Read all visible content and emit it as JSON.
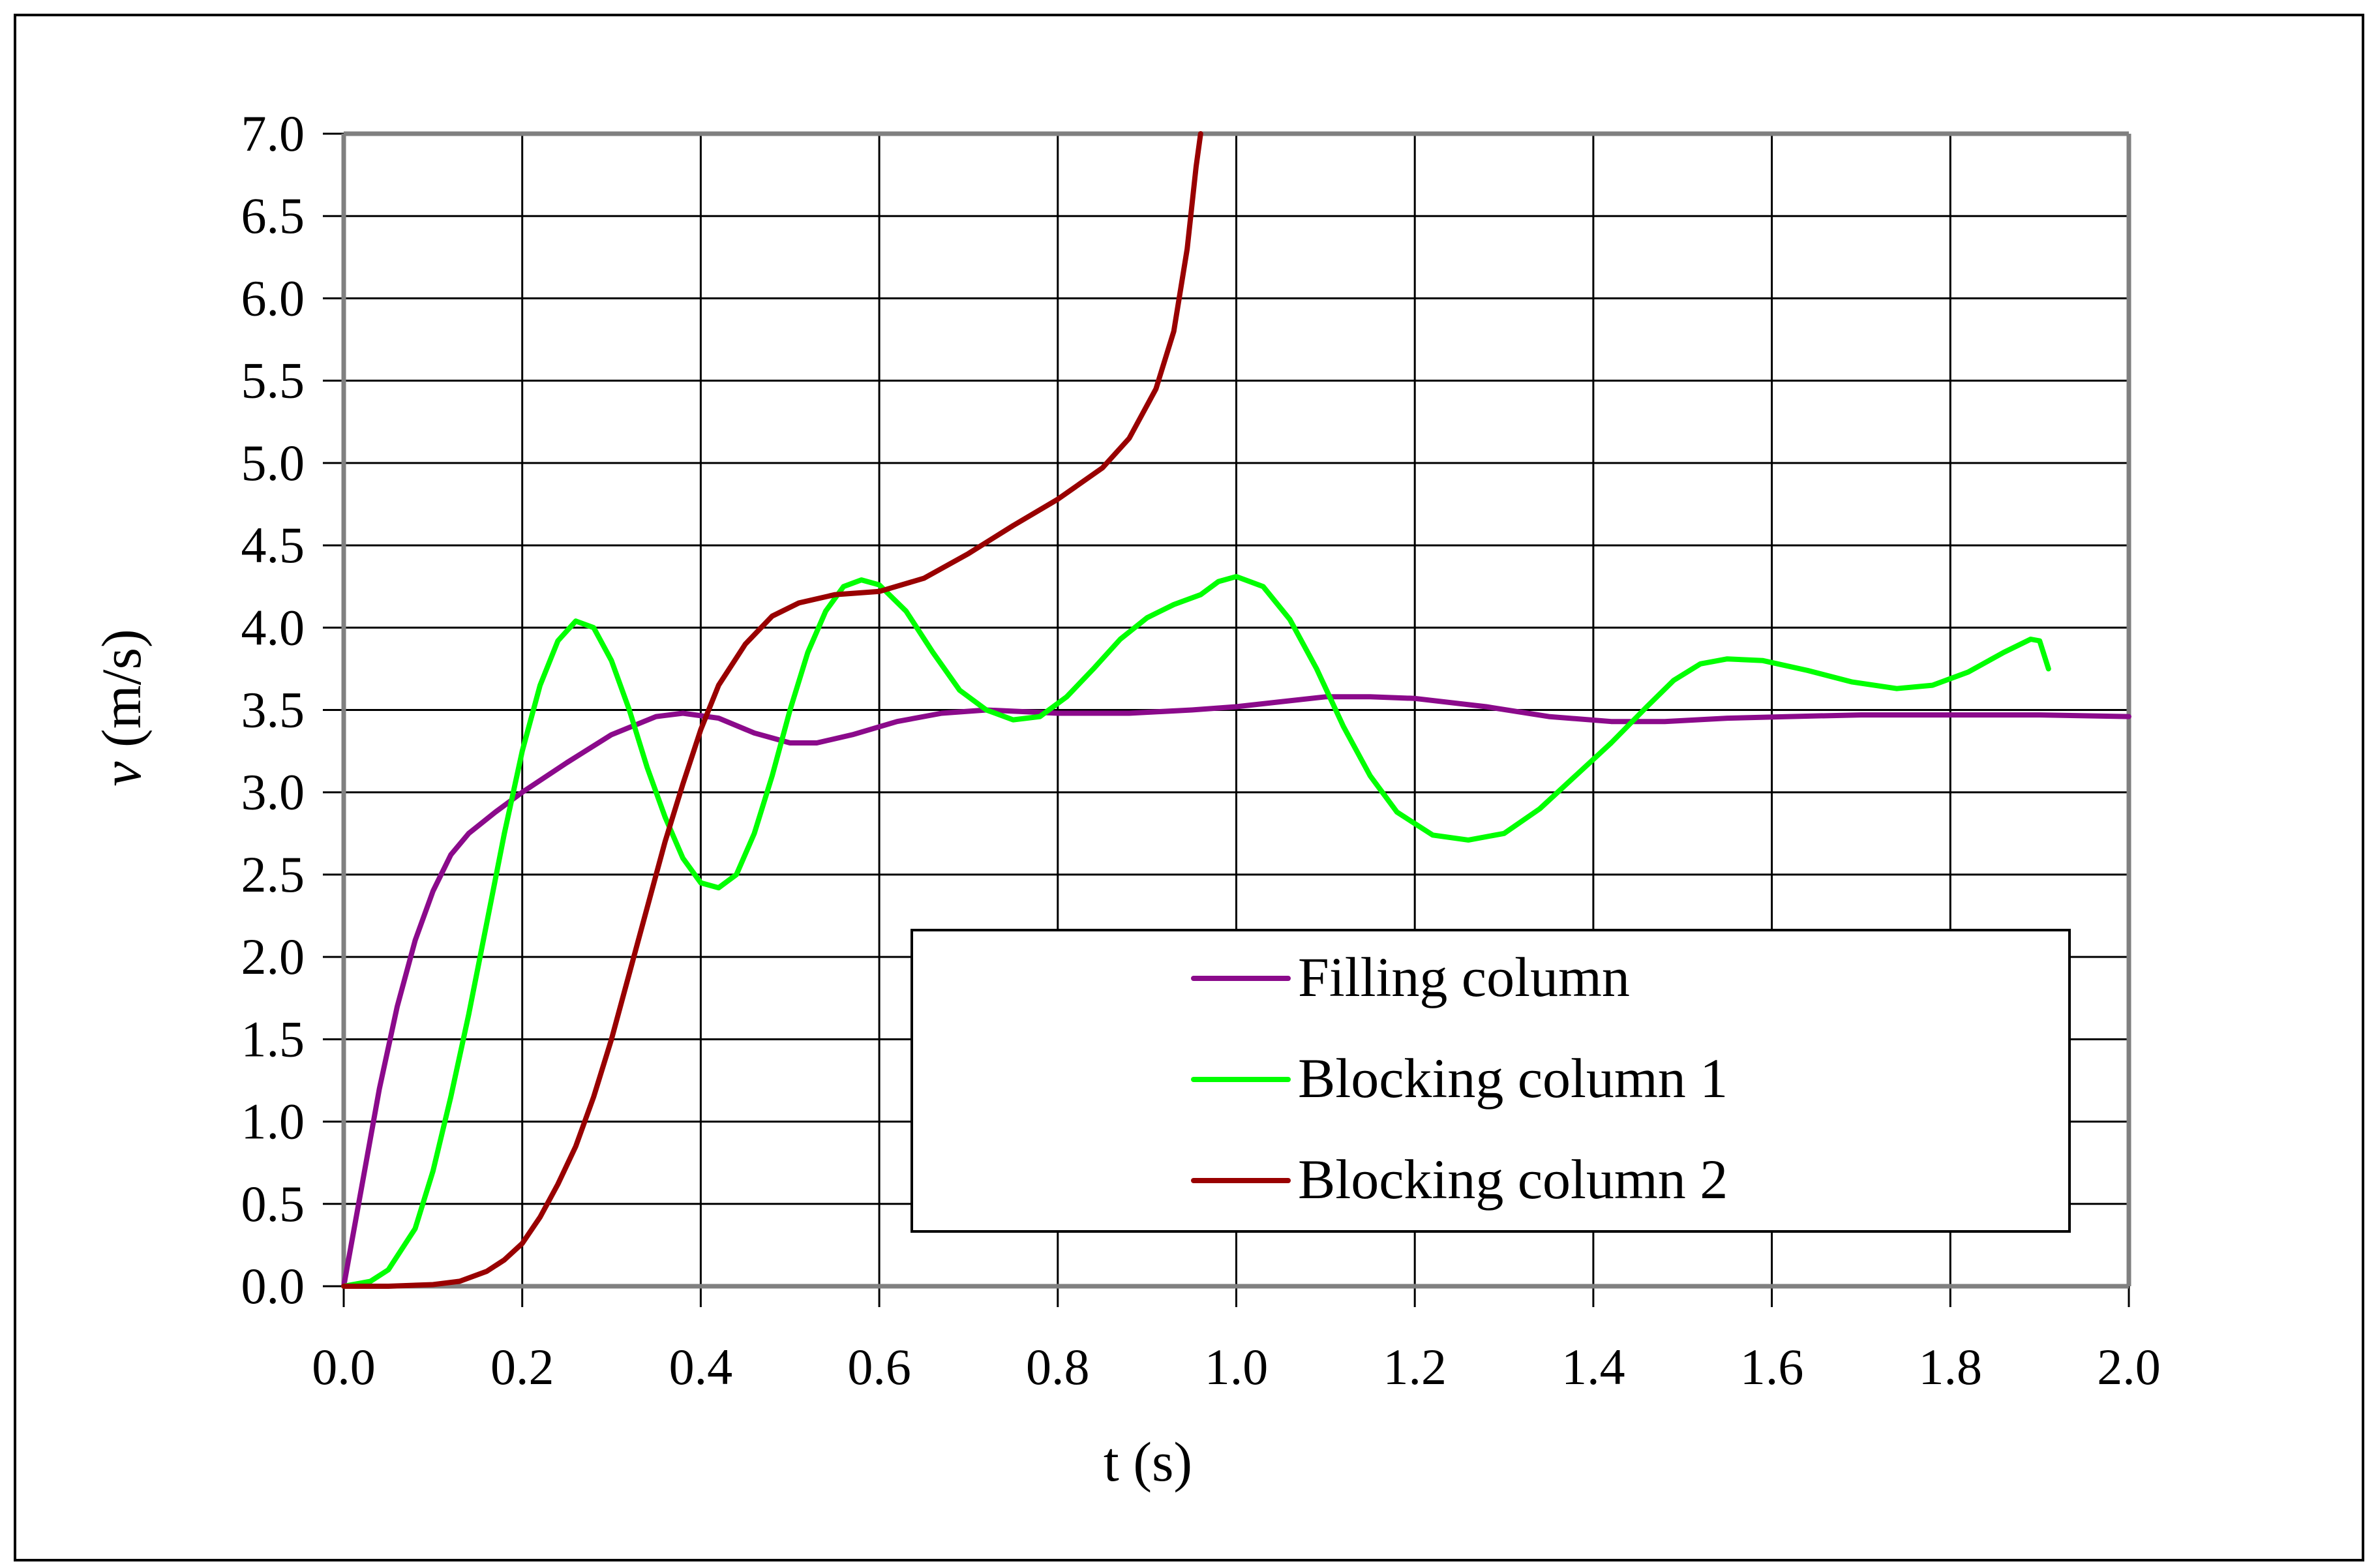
{
  "chart_data": {
    "type": "line",
    "title": "",
    "xlabel": "t (s)",
    "ylabel_italic": "v",
    "ylabel_unit": " (m/s)",
    "ylabel": "v (m/s)",
    "xlim": [
      0.0,
      2.0
    ],
    "ylim": [
      0.0,
      7.0
    ],
    "grid": true,
    "legend_position": "lower right (inside plot)",
    "x_ticks": [
      "0.0",
      "0.2",
      "0.4",
      "0.6",
      "0.8",
      "1.0",
      "1.2",
      "1.4",
      "1.6",
      "1.8",
      "2.0"
    ],
    "y_ticks": [
      "0.0",
      "0.5",
      "1.0",
      "1.5",
      "2.0",
      "2.5",
      "3.0",
      "3.5",
      "4.0",
      "4.5",
      "5.0",
      "5.5",
      "6.0",
      "6.5",
      "7.0"
    ],
    "series": [
      {
        "name": "Filling column",
        "color": "#8B0A8B",
        "points": [
          [
            0.0,
            0.0
          ],
          [
            0.02,
            0.6
          ],
          [
            0.04,
            1.2
          ],
          [
            0.06,
            1.7
          ],
          [
            0.08,
            2.1
          ],
          [
            0.1,
            2.4
          ],
          [
            0.12,
            2.62
          ],
          [
            0.14,
            2.75
          ],
          [
            0.17,
            2.88
          ],
          [
            0.2,
            3.0
          ],
          [
            0.25,
            3.18
          ],
          [
            0.3,
            3.35
          ],
          [
            0.35,
            3.46
          ],
          [
            0.38,
            3.48
          ],
          [
            0.42,
            3.45
          ],
          [
            0.46,
            3.36
          ],
          [
            0.5,
            3.3
          ],
          [
            0.53,
            3.3
          ],
          [
            0.57,
            3.35
          ],
          [
            0.62,
            3.43
          ],
          [
            0.67,
            3.48
          ],
          [
            0.72,
            3.5
          ],
          [
            0.8,
            3.48
          ],
          [
            0.88,
            3.48
          ],
          [
            0.95,
            3.5
          ],
          [
            1.0,
            3.52
          ],
          [
            1.05,
            3.55
          ],
          [
            1.1,
            3.58
          ],
          [
            1.15,
            3.58
          ],
          [
            1.2,
            3.57
          ],
          [
            1.28,
            3.52
          ],
          [
            1.35,
            3.46
          ],
          [
            1.42,
            3.43
          ],
          [
            1.48,
            3.43
          ],
          [
            1.55,
            3.45
          ],
          [
            1.62,
            3.46
          ],
          [
            1.7,
            3.47
          ],
          [
            1.8,
            3.47
          ],
          [
            1.9,
            3.47
          ],
          [
            2.0,
            3.46
          ]
        ]
      },
      {
        "name": "Blocking column 1",
        "color": "#00FF00",
        "points": [
          [
            0.0,
            0.0
          ],
          [
            0.03,
            0.03
          ],
          [
            0.05,
            0.1
          ],
          [
            0.08,
            0.35
          ],
          [
            0.1,
            0.7
          ],
          [
            0.12,
            1.15
          ],
          [
            0.14,
            1.65
          ],
          [
            0.16,
            2.2
          ],
          [
            0.18,
            2.75
          ],
          [
            0.2,
            3.25
          ],
          [
            0.22,
            3.65
          ],
          [
            0.24,
            3.92
          ],
          [
            0.26,
            4.04
          ],
          [
            0.28,
            4.0
          ],
          [
            0.3,
            3.8
          ],
          [
            0.32,
            3.5
          ],
          [
            0.34,
            3.15
          ],
          [
            0.36,
            2.85
          ],
          [
            0.38,
            2.6
          ],
          [
            0.4,
            2.45
          ],
          [
            0.42,
            2.42
          ],
          [
            0.44,
            2.5
          ],
          [
            0.46,
            2.75
          ],
          [
            0.48,
            3.1
          ],
          [
            0.5,
            3.5
          ],
          [
            0.52,
            3.85
          ],
          [
            0.54,
            4.1
          ],
          [
            0.56,
            4.25
          ],
          [
            0.58,
            4.29
          ],
          [
            0.6,
            4.26
          ],
          [
            0.63,
            4.1
          ],
          [
            0.66,
            3.85
          ],
          [
            0.69,
            3.62
          ],
          [
            0.72,
            3.5
          ],
          [
            0.75,
            3.44
          ],
          [
            0.78,
            3.46
          ],
          [
            0.81,
            3.58
          ],
          [
            0.84,
            3.75
          ],
          [
            0.87,
            3.93
          ],
          [
            0.9,
            4.06
          ],
          [
            0.93,
            4.14
          ],
          [
            0.96,
            4.2
          ],
          [
            0.98,
            4.28
          ],
          [
            1.0,
            4.31
          ],
          [
            1.03,
            4.25
          ],
          [
            1.06,
            4.05
          ],
          [
            1.09,
            3.75
          ],
          [
            1.12,
            3.4
          ],
          [
            1.15,
            3.1
          ],
          [
            1.18,
            2.88
          ],
          [
            1.22,
            2.74
          ],
          [
            1.26,
            2.71
          ],
          [
            1.3,
            2.75
          ],
          [
            1.34,
            2.9
          ],
          [
            1.38,
            3.1
          ],
          [
            1.42,
            3.3
          ],
          [
            1.46,
            3.52
          ],
          [
            1.49,
            3.68
          ],
          [
            1.52,
            3.78
          ],
          [
            1.55,
            3.81
          ],
          [
            1.59,
            3.8
          ],
          [
            1.64,
            3.74
          ],
          [
            1.69,
            3.67
          ],
          [
            1.74,
            3.63
          ],
          [
            1.78,
            3.65
          ],
          [
            1.82,
            3.73
          ],
          [
            1.86,
            3.85
          ],
          [
            1.89,
            3.93
          ],
          [
            1.9,
            3.92
          ],
          [
            1.91,
            3.75
          ]
        ]
      },
      {
        "name": "Blocking column 2",
        "color": "#990000",
        "points": [
          [
            0.0,
            0.0
          ],
          [
            0.05,
            0.0
          ],
          [
            0.1,
            0.01
          ],
          [
            0.13,
            0.03
          ],
          [
            0.16,
            0.09
          ],
          [
            0.18,
            0.16
          ],
          [
            0.2,
            0.26
          ],
          [
            0.22,
            0.42
          ],
          [
            0.24,
            0.62
          ],
          [
            0.26,
            0.85
          ],
          [
            0.28,
            1.15
          ],
          [
            0.3,
            1.5
          ],
          [
            0.32,
            1.9
          ],
          [
            0.34,
            2.3
          ],
          [
            0.36,
            2.7
          ],
          [
            0.38,
            3.05
          ],
          [
            0.4,
            3.38
          ],
          [
            0.42,
            3.65
          ],
          [
            0.45,
            3.9
          ],
          [
            0.48,
            4.07
          ],
          [
            0.51,
            4.15
          ],
          [
            0.55,
            4.2
          ],
          [
            0.6,
            4.22
          ],
          [
            0.65,
            4.3
          ],
          [
            0.7,
            4.45
          ],
          [
            0.75,
            4.62
          ],
          [
            0.8,
            4.78
          ],
          [
            0.85,
            4.97
          ],
          [
            0.88,
            5.15
          ],
          [
            0.91,
            5.45
          ],
          [
            0.93,
            5.8
          ],
          [
            0.945,
            6.3
          ],
          [
            0.955,
            6.8
          ],
          [
            0.96,
            7.0
          ]
        ]
      }
    ]
  },
  "legend": {
    "items": [
      {
        "label": "Filling column",
        "color": "#8B0A8B"
      },
      {
        "label": "Blocking column 1",
        "color": "#00FF00"
      },
      {
        "label": "Blocking column 2",
        "color": "#990000"
      }
    ]
  }
}
